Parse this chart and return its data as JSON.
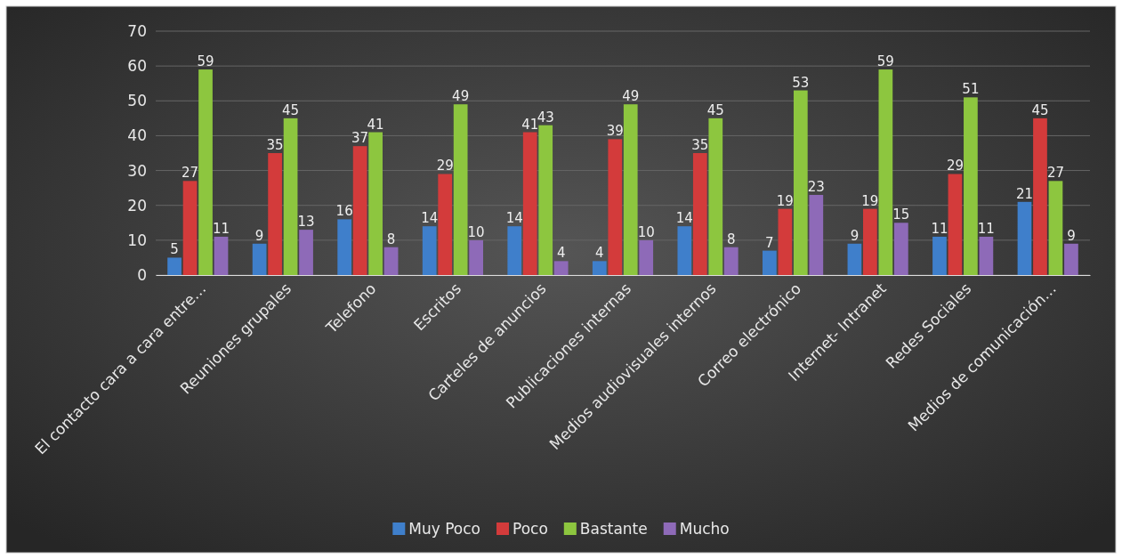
{
  "chart_data": {
    "type": "bar",
    "categories": [
      "El contacto cara a cara entre…",
      "Reuniones grupales",
      "Telefono",
      "Escritos",
      "Carteles de anuncios",
      "Publicaciones internas",
      "Medios audiovisuales internos",
      "Correo electrónico",
      "Internet- Intranet",
      "Redes Sociales",
      "Medios de comunicación…"
    ],
    "series": [
      {
        "name": "Muy Poco",
        "color": "#3f7fcb",
        "values": [
          5,
          9,
          16,
          14,
          14,
          4,
          14,
          7,
          9,
          11,
          21
        ]
      },
      {
        "name": "Poco",
        "color": "#d33b3b",
        "values": [
          27,
          35,
          37,
          29,
          41,
          39,
          35,
          19,
          19,
          29,
          45
        ]
      },
      {
        "name": "Bastante",
        "color": "#8dc63f",
        "values": [
          59,
          45,
          41,
          49,
          43,
          49,
          45,
          53,
          59,
          51,
          27
        ]
      },
      {
        "name": "Mucho",
        "color": "#8e6ab8",
        "values": [
          11,
          13,
          8,
          10,
          4,
          10,
          8,
          23,
          15,
          11,
          9
        ]
      }
    ],
    "ylim": [
      0,
      70
    ],
    "yticks": [
      0,
      10,
      20,
      30,
      40,
      50,
      60,
      70
    ],
    "grid": "y",
    "legend": "bottom",
    "data_labels": true
  }
}
